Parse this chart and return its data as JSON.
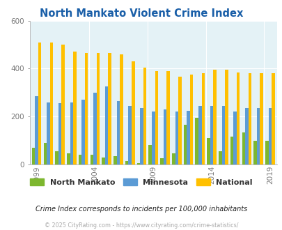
{
  "title": "North Mankato Violent Crime Index",
  "years": [
    1999,
    2000,
    2001,
    2002,
    2003,
    2004,
    2005,
    2006,
    2007,
    2008,
    2009,
    2010,
    2011,
    2012,
    2013,
    2014,
    2015,
    2016,
    2017,
    2018,
    2019
  ],
  "north_mankato": [
    70,
    90,
    55,
    45,
    40,
    40,
    30,
    35,
    15,
    5,
    80,
    25,
    45,
    165,
    195,
    110,
    55,
    115,
    135,
    100,
    100
  ],
  "minnesota": [
    285,
    260,
    255,
    260,
    270,
    300,
    325,
    265,
    245,
    235,
    220,
    230,
    220,
    225,
    245,
    245,
    245,
    220,
    235,
    235,
    235
  ],
  "national": [
    510,
    510,
    500,
    470,
    465,
    465,
    465,
    460,
    430,
    405,
    390,
    390,
    365,
    375,
    380,
    395,
    395,
    385,
    380,
    380,
    380
  ],
  "color_nm": "#7db72f",
  "color_mn": "#5b9bd5",
  "color_nat": "#ffc000",
  "bg_color": "#e4f2f6",
  "ylim_max": 600,
  "yticks": [
    0,
    200,
    400,
    600
  ],
  "xtick_years": [
    1999,
    2004,
    2009,
    2014,
    2019
  ],
  "footer1": "Crime Index corresponds to incidents per 100,000 inhabitants",
  "footer2": "© 2025 CityRating.com - https://www.cityrating.com/crime-statistics/",
  "title_color": "#1a5fa8",
  "tick_color": "#777777",
  "legend_labels": [
    "North Mankato",
    "Minnesota",
    "National"
  ],
  "legend_text_color": "#333333"
}
